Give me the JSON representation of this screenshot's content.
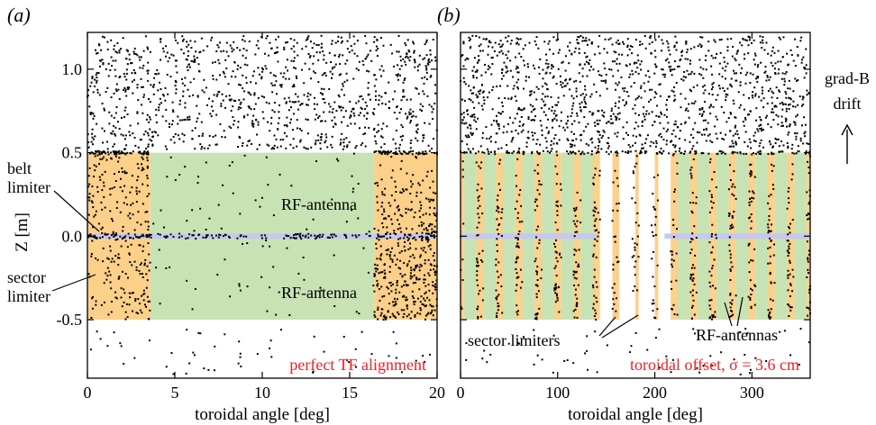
{
  "chart_data": [
    {
      "type": "scatter",
      "panel_label": "(a)",
      "xlabel": "toroidal angle [deg]",
      "ylabel": "Z [m]",
      "xlim": [
        0,
        20
      ],
      "ylim": [
        -0.85,
        1.22
      ],
      "xticks": [
        "0",
        "5",
        "10",
        "15",
        "20"
      ],
      "yticks": [
        "-0.5",
        "0.0",
        "0.5",
        "1.0"
      ],
      "regions": [
        {
          "name": "sector limiter",
          "kind": "orange",
          "x": [
            0,
            3.6
          ],
          "y": [
            -0.5,
            0.5
          ]
        },
        {
          "name": "RF-antenna",
          "kind": "green",
          "x": [
            3.6,
            16.4
          ],
          "y": [
            -0.5,
            0.5
          ]
        },
        {
          "name": "sector limiter",
          "kind": "orange",
          "x": [
            16.4,
            20
          ],
          "y": [
            -0.5,
            0.5
          ]
        },
        {
          "name": "belt limiter",
          "kind": "belt",
          "x": [
            0,
            20
          ],
          "y": [
            -0.015,
            0.015
          ]
        }
      ],
      "scatter_density": {
        "above_0.5": "high",
        "on_sector_limiters": "medium",
        "on_antenna": "low",
        "below_-0.5": "low"
      },
      "labels": {
        "rf_top": "RF-antenna",
        "rf_bottom": "RF-antenna",
        "belt": "belt\nlimiter",
        "sector": "sector\nlimiter"
      },
      "annotation": "perfect TF alignment"
    },
    {
      "type": "scatter",
      "panel_label": "(b)",
      "xlabel": "toroidal angle [deg]",
      "ylabel": "",
      "xlim": [
        0,
        360
      ],
      "ylim": [
        -0.85,
        1.22
      ],
      "xticks": [
        "0",
        "100",
        "200",
        "300"
      ],
      "yticks": [],
      "regions_pattern": "18 sectors of 20 deg each: orange sector limiter (~0-3.6 deg) + green RF-antenna (~3.6-16.4 deg) + orange (~16.4-20 deg); sectors near 150-220 deg show white gaps",
      "labels": {
        "sector": "sector limiters",
        "rf": "RF-antennas"
      },
      "annotation": "toroidal offset, σ = 3.6 cm",
      "side_label": "grad-B\ndrift"
    }
  ],
  "colors": {
    "orange": "#fdd08a",
    "green": "#c7e3b4",
    "belt": "#c6c8f0",
    "red": "#e8222a",
    "dot": "#000000"
  }
}
